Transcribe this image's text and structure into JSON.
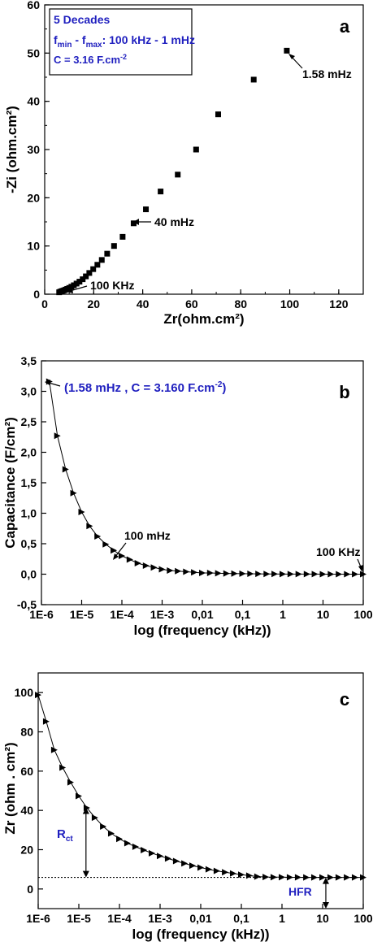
{
  "chart_data": [
    {
      "type": "scatter",
      "panel_letter": "a",
      "xlabel": "Zr(ohm.cm²)",
      "ylabel": "-Zi (ohm.cm²)",
      "xlim": [
        0,
        130
      ],
      "ylim": [
        0,
        60
      ],
      "x_ticks": [
        "0",
        "20",
        "40",
        "60",
        "80",
        "100",
        "120"
      ],
      "y_ticks": [
        "0",
        "10",
        "20",
        "30",
        "40",
        "50",
        "60"
      ],
      "marker_color": "#000000",
      "info_box": {
        "line1": "5 Decades",
        "line2_pre": "f",
        "line2_sub1": "min",
        "line2_mid": " - f",
        "line2_sub2": "max",
        "line2_post": ": 100 kHz - 1 mHz",
        "line3": "C = 3.16 F.cm",
        "line3_sup": "-2",
        "color": "#1f1fbf"
      },
      "annotations": [
        {
          "text": "1.58 mHz"
        },
        {
          "text": "40 mHz"
        },
        {
          "text": "100 KHz"
        }
      ],
      "points": [
        {
          "x": 5.9,
          "y": 0.4
        },
        {
          "x": 6.3,
          "y": 0.5
        },
        {
          "x": 6.8,
          "y": 0.6
        },
        {
          "x": 7.3,
          "y": 0.7
        },
        {
          "x": 7.9,
          "y": 0.8
        },
        {
          "x": 8.5,
          "y": 0.95
        },
        {
          "x": 9.2,
          "y": 1.1
        },
        {
          "x": 10.0,
          "y": 1.3
        },
        {
          "x": 10.9,
          "y": 1.55
        },
        {
          "x": 11.9,
          "y": 1.85
        },
        {
          "x": 13.0,
          "y": 2.2
        },
        {
          "x": 14.2,
          "y": 2.6
        },
        {
          "x": 15.5,
          "y": 3.1
        },
        {
          "x": 16.8,
          "y": 3.7
        },
        {
          "x": 18.2,
          "y": 4.4
        },
        {
          "x": 19.8,
          "y": 5.2
        },
        {
          "x": 21.5,
          "y": 6.1
        },
        {
          "x": 23.3,
          "y": 7.1
        },
        {
          "x": 25.5,
          "y": 8.4
        },
        {
          "x": 28.3,
          "y": 10.0
        },
        {
          "x": 31.8,
          "y": 11.9
        },
        {
          "x": 36.3,
          "y": 14.7
        },
        {
          "x": 41.3,
          "y": 17.6
        },
        {
          "x": 47.3,
          "y": 21.3
        },
        {
          "x": 54.3,
          "y": 24.8
        },
        {
          "x": 61.8,
          "y": 30.0
        },
        {
          "x": 70.8,
          "y": 37.3
        },
        {
          "x": 85.3,
          "y": 44.5
        },
        {
          "x": 98.8,
          "y": 50.5
        }
      ]
    },
    {
      "type": "line",
      "panel_letter": "b",
      "xlabel": "log (frequency (kHz))",
      "ylabel": "Capacitance (F/cm²)",
      "x_scale": "log",
      "xlim": [
        1e-06,
        100
      ],
      "ylim": [
        -0.5,
        3.5
      ],
      "x_ticks": [
        "1E-6",
        "1E-5",
        "1E-4",
        "1E-3",
        "0,01",
        "0,1",
        "1",
        "10",
        "100"
      ],
      "y_ticks": [
        "-0,5",
        "0,0",
        "0,5",
        "1,0",
        "1,5",
        "2,0",
        "2,5",
        "3,0",
        "3,5"
      ],
      "marker": "right-triangle",
      "highlight": {
        "pre": "(1.58 mHz , C = 3.160 F.cm",
        "sup": "-2",
        "post": ")",
        "color": "#1f1fbf"
      },
      "annotations": [
        {
          "text": "100 mHz"
        },
        {
          "text": "100 KHz"
        }
      ],
      "points": [
        {
          "x": 1.58e-06,
          "y": 3.16
        },
        {
          "x": 2.5e-06,
          "y": 2.27
        },
        {
          "x": 4e-06,
          "y": 1.72
        },
        {
          "x": 6.3e-06,
          "y": 1.33
        },
        {
          "x": 1e-05,
          "y": 1.02
        },
        {
          "x": 1.58e-05,
          "y": 0.79
        },
        {
          "x": 2.5e-05,
          "y": 0.62
        },
        {
          "x": 4e-05,
          "y": 0.49
        },
        {
          "x": 6.3e-05,
          "y": 0.39
        },
        {
          "x": 0.0001,
          "y": 0.3
        },
        {
          "x": 0.000158,
          "y": 0.24
        },
        {
          "x": 0.00025,
          "y": 0.18
        },
        {
          "x": 0.0004,
          "y": 0.14
        },
        {
          "x": 0.00063,
          "y": 0.11
        },
        {
          "x": 0.001,
          "y": 0.08
        },
        {
          "x": 0.00158,
          "y": 0.06
        },
        {
          "x": 0.0025,
          "y": 0.05
        },
        {
          "x": 0.004,
          "y": 0.04
        },
        {
          "x": 0.0063,
          "y": 0.03
        },
        {
          "x": 0.01,
          "y": 0.02
        },
        {
          "x": 0.0158,
          "y": 0.02
        },
        {
          "x": 0.025,
          "y": 0.015
        },
        {
          "x": 0.04,
          "y": 0.012
        },
        {
          "x": 0.063,
          "y": 0.01
        },
        {
          "x": 0.1,
          "y": 0.008
        },
        {
          "x": 0.158,
          "y": 0.006
        },
        {
          "x": 0.25,
          "y": 0.005
        },
        {
          "x": 0.4,
          "y": 0.004
        },
        {
          "x": 0.63,
          "y": 0.003
        },
        {
          "x": 1,
          "y": 0.002
        },
        {
          "x": 1.58,
          "y": 0.002
        },
        {
          "x": 2.5,
          "y": 0.001
        },
        {
          "x": 4,
          "y": 0.001
        },
        {
          "x": 6.3,
          "y": 0.001
        },
        {
          "x": 10,
          "y": 0.0
        },
        {
          "x": 15.8,
          "y": 0.0
        },
        {
          "x": 25,
          "y": 0.0
        },
        {
          "x": 40,
          "y": 0.0
        },
        {
          "x": 63,
          "y": 0.0
        },
        {
          "x": 100,
          "y": 0.0
        }
      ]
    },
    {
      "type": "line",
      "panel_letter": "c",
      "xlabel": "log (frequency (kHz))",
      "ylabel": "Zr (ohm . cm²)",
      "x_scale": "log",
      "xlim": [
        1e-06,
        100
      ],
      "ylim": [
        -10,
        110
      ],
      "x_ticks": [
        "1E-6",
        "1E-5",
        "1E-4",
        "1E-3",
        "0,01",
        "0,1",
        "1",
        "10",
        "100"
      ],
      "y_ticks": [
        "0",
        "20",
        "40",
        "60",
        "80",
        "100"
      ],
      "marker": "right-triangle",
      "hfr_level": 5.9,
      "rct_label": {
        "main": "R",
        "sub": "ct",
        "color": "#1f1fbf"
      },
      "hfr_label": {
        "text": "HFR",
        "color": "#1f1fbf"
      },
      "rct_arrow_at": {
        "x": 1.5e-05,
        "y_top": 41.5
      },
      "hfr_arrow_at": {
        "x": 12
      },
      "points": [
        {
          "x": 1e-06,
          "y": 98.8
        },
        {
          "x": 1.58e-06,
          "y": 85.3
        },
        {
          "x": 2.5e-06,
          "y": 70.8
        },
        {
          "x": 4e-06,
          "y": 61.8
        },
        {
          "x": 6.3e-06,
          "y": 54.3
        },
        {
          "x": 1e-05,
          "y": 47.3
        },
        {
          "x": 1.58e-05,
          "y": 41.3
        },
        {
          "x": 2.5e-05,
          "y": 36.3
        },
        {
          "x": 4e-05,
          "y": 31.8
        },
        {
          "x": 6.3e-05,
          "y": 28.3
        },
        {
          "x": 0.0001,
          "y": 25.5
        },
        {
          "x": 0.000158,
          "y": 23.3
        },
        {
          "x": 0.00025,
          "y": 21.5
        },
        {
          "x": 0.0004,
          "y": 19.8
        },
        {
          "x": 0.00063,
          "y": 18.2
        },
        {
          "x": 0.001,
          "y": 16.8
        },
        {
          "x": 0.00158,
          "y": 15.5
        },
        {
          "x": 0.0025,
          "y": 14.2
        },
        {
          "x": 0.004,
          "y": 13.0
        },
        {
          "x": 0.0063,
          "y": 11.9
        },
        {
          "x": 0.01,
          "y": 10.9
        },
        {
          "x": 0.0158,
          "y": 10.0
        },
        {
          "x": 0.025,
          "y": 9.2
        },
        {
          "x": 0.04,
          "y": 8.5
        },
        {
          "x": 0.063,
          "y": 7.9
        },
        {
          "x": 0.1,
          "y": 7.3
        },
        {
          "x": 0.158,
          "y": 6.8
        },
        {
          "x": 0.25,
          "y": 6.3
        },
        {
          "x": 0.4,
          "y": 6.1
        },
        {
          "x": 0.63,
          "y": 6.0
        },
        {
          "x": 1,
          "y": 6.0
        },
        {
          "x": 1.58,
          "y": 5.95
        },
        {
          "x": 2.5,
          "y": 5.95
        },
        {
          "x": 4,
          "y": 5.9
        },
        {
          "x": 6.3,
          "y": 5.9
        },
        {
          "x": 10,
          "y": 5.9
        },
        {
          "x": 15.8,
          "y": 5.9
        },
        {
          "x": 25,
          "y": 5.9
        },
        {
          "x": 40,
          "y": 5.9
        },
        {
          "x": 63,
          "y": 5.9
        },
        {
          "x": 100,
          "y": 5.9
        }
      ]
    }
  ]
}
